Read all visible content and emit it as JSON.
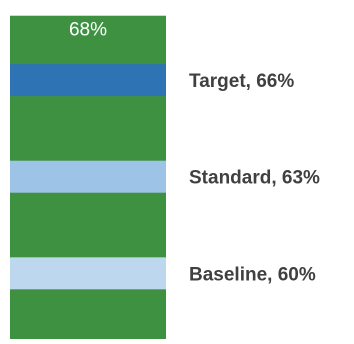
{
  "chart_data": {
    "type": "bar",
    "title": "",
    "value": 68,
    "value_label": "68%",
    "bar_color": "#3f9142",
    "markers": [
      {
        "label": "Target, 66%",
        "value": 66,
        "color": "#2e74b5"
      },
      {
        "label": "Standard, 63%",
        "value": 63,
        "color": "#9dc3e6"
      },
      {
        "label": "Baseline, 60%",
        "value": 60,
        "color": "#bdd7ee"
      }
    ],
    "grid": false,
    "legend": "none"
  }
}
